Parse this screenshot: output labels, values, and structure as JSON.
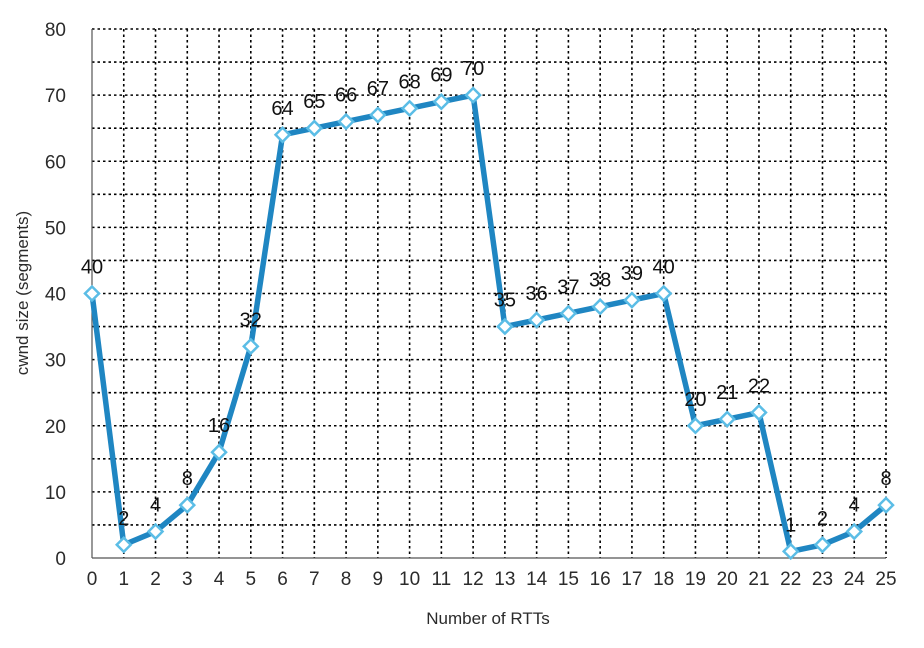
{
  "chart_data": {
    "type": "line",
    "xlabel": "Number of RTTs",
    "ylabel": "cwnd size (segments)",
    "x": [
      0,
      1,
      2,
      3,
      4,
      5,
      6,
      7,
      8,
      9,
      10,
      11,
      12,
      13,
      14,
      15,
      16,
      17,
      18,
      19,
      20,
      21,
      22,
      23,
      24,
      25
    ],
    "series": [
      {
        "values": [
          40,
          2,
          4,
          8,
          16,
          32,
          64,
          65,
          66,
          67,
          68,
          69,
          70,
          35,
          36,
          37,
          38,
          39,
          40,
          20,
          21,
          22,
          1,
          2,
          4,
          8
        ],
        "color": "#1f86c2",
        "marker": "diamond-open",
        "marker_fill": "#ffffff",
        "marker_stroke": "#5bbde6"
      }
    ],
    "ylim": [
      0,
      80
    ],
    "yticks": [
      0,
      10,
      20,
      30,
      40,
      50,
      60,
      70,
      80
    ],
    "xlim": [
      0,
      25
    ],
    "grid": {
      "style": "dotted",
      "color": "#000000",
      "y_minor_step": 5
    },
    "data_labels": true
  }
}
